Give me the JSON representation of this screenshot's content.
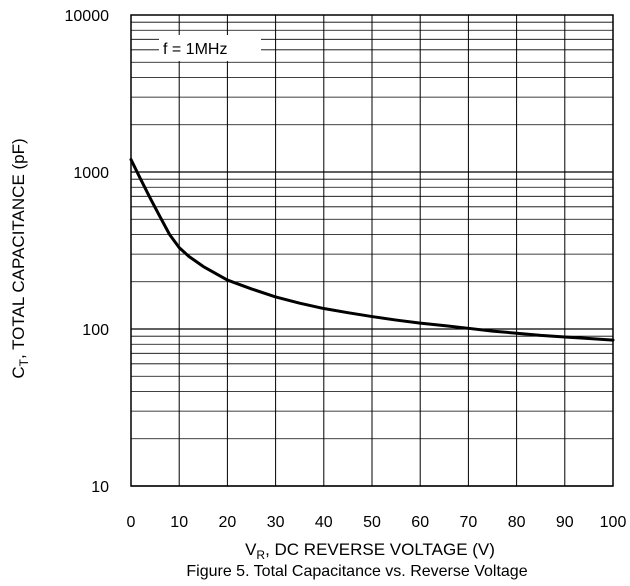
{
  "chart_data": {
    "type": "line",
    "x_scale": "linear",
    "y_scale": "log",
    "xlim": [
      0,
      100
    ],
    "ylim": [
      10,
      10000
    ],
    "x_ticks": [
      0,
      10,
      20,
      30,
      40,
      50,
      60,
      70,
      80,
      90,
      100
    ],
    "y_ticks": [
      10,
      100,
      1000,
      10000
    ],
    "x_tick_labels": [
      "0",
      "10",
      "20",
      "30",
      "40",
      "50",
      "60",
      "70",
      "80",
      "90",
      "100"
    ],
    "y_tick_labels": [
      "10",
      "100",
      "1000",
      "10000"
    ],
    "grid": true,
    "ylabel": {
      "main": "C",
      "sub": "T",
      "rest": ", TOTAL CAPACITANCE (pF)"
    },
    "xlabel": {
      "main": "V",
      "sub": "R",
      "rest": ", DC REVERSE VOLTAGE (V)"
    },
    "caption": "Figure 5. Total Capacitance vs. Reverse Voltage",
    "annotation": "f = 1MHz",
    "series": [
      {
        "color": "#000000",
        "x": [
          0,
          2,
          4,
          6,
          8,
          10,
          12,
          15,
          20,
          25,
          30,
          35,
          40,
          45,
          50,
          55,
          60,
          65,
          70,
          75,
          80,
          85,
          90,
          95,
          100
        ],
        "y": [
          1200,
          900,
          680,
          520,
          400,
          330,
          290,
          250,
          205,
          180,
          160,
          146,
          135,
          127,
          120,
          114,
          109,
          105,
          101,
          97,
          94,
          91,
          89,
          87,
          85
        ]
      }
    ]
  }
}
